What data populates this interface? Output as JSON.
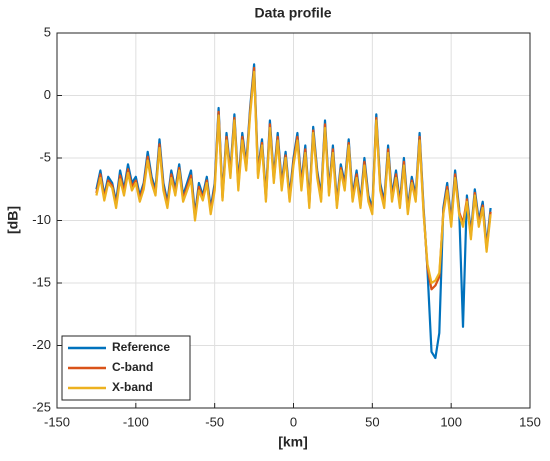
{
  "chart_data": {
    "type": "line",
    "title": "Data profile",
    "xlabel": "[km]",
    "ylabel": "[dB]",
    "x": [
      -125,
      -122.5,
      -120,
      -117.5,
      -115,
      -112.5,
      -110,
      -107.5,
      -105,
      -102.5,
      -100,
      -97.5,
      -95,
      -92.5,
      -90,
      -87.5,
      -85,
      -82.5,
      -80,
      -77.5,
      -75,
      -72.5,
      -70,
      -67.5,
      -65,
      -62.5,
      -60,
      -57.5,
      -55,
      -52.5,
      -50,
      -47.5,
      -45,
      -42.5,
      -40,
      -37.5,
      -35,
      -32.5,
      -30,
      -27.5,
      -25,
      -22.5,
      -20,
      -17.5,
      -15,
      -12.5,
      -10,
      -7.5,
      -5,
      -2.5,
      0,
      2.5,
      5,
      7.5,
      10,
      12.5,
      15,
      17.5,
      20,
      22.5,
      25,
      27.5,
      30,
      32.5,
      35,
      37.5,
      40,
      42.5,
      45,
      47.5,
      50,
      52.5,
      55,
      57.5,
      60,
      62.5,
      65,
      67.5,
      70,
      72.5,
      75,
      77.5,
      80,
      82.5,
      85,
      87.5,
      90,
      92.5,
      95,
      97.5,
      100,
      102.5,
      105,
      107.5,
      110,
      112.5,
      115,
      117.5,
      120,
      122.5,
      125
    ],
    "series": [
      {
        "name": "Reference",
        "color": "#0072bd",
        "values": [
          -7.5,
          -6,
          -8,
          -6.5,
          -7,
          -8.5,
          -6,
          -7.5,
          -5.5,
          -7,
          -6.5,
          -8,
          -7,
          -4.5,
          -6.5,
          -7.5,
          -3.5,
          -7,
          -8.5,
          -6,
          -7.5,
          -5.5,
          -8,
          -7,
          -6,
          -9.5,
          -7,
          -8,
          -6.5,
          -9,
          -7,
          -1,
          -8,
          -3,
          -6,
          -1.5,
          -7,
          -3,
          -5.5,
          -1,
          2.5,
          -6,
          -3.5,
          -8,
          -2,
          -6.5,
          -3,
          -7,
          -4.5,
          -8,
          -5,
          -3,
          -7,
          -4,
          -8.5,
          -2.5,
          -6,
          -8,
          -2,
          -7.5,
          -4,
          -8.5,
          -5.5,
          -7,
          -3.5,
          -8,
          -6,
          -8.5,
          -5,
          -8,
          -9,
          -1.5,
          -7,
          -8.5,
          -4,
          -8,
          -6,
          -8.5,
          -5,
          -9,
          -6.5,
          -8,
          -3,
          -9,
          -14,
          -20.5,
          -21,
          -19,
          -9,
          -7,
          -10,
          -6,
          -9,
          -18.5,
          -8,
          -11,
          -7.5,
          -10,
          -8.5,
          -12,
          -9
        ]
      },
      {
        "name": "C-band",
        "color": "#d95319",
        "values": [
          -7.8,
          -6.3,
          -8.2,
          -6.8,
          -7.2,
          -8.8,
          -6.4,
          -7.7,
          -5.9,
          -7.3,
          -6.8,
          -8.3,
          -7.2,
          -4.9,
          -6.8,
          -7.8,
          -3.9,
          -7.3,
          -8.8,
          -6.3,
          -7.8,
          -5.8,
          -8.3,
          -7.3,
          -6.4,
          -9.8,
          -7.3,
          -8.2,
          -6.8,
          -9.3,
          -7.3,
          -1.3,
          -8.2,
          -3.3,
          -6.3,
          -1.8,
          -7.3,
          -3.3,
          -5.8,
          -1.3,
          2.2,
          -6.3,
          -3.8,
          -8.3,
          -2.3,
          -6.8,
          -3.3,
          -7.3,
          -4.8,
          -8.3,
          -5.3,
          -3.3,
          -7.3,
          -4.3,
          -8.8,
          -2.8,
          -6.3,
          -8.3,
          -2.3,
          -7.8,
          -4.3,
          -8.8,
          -5.8,
          -7.3,
          -3.8,
          -8.3,
          -6.3,
          -8.8,
          -5.3,
          -8.3,
          -9.3,
          -1.8,
          -7.3,
          -8.8,
          -4.3,
          -8.3,
          -6.3,
          -8.8,
          -5.3,
          -9.3,
          -6.8,
          -8.3,
          -3.3,
          -9.3,
          -13.8,
          -15.5,
          -15.2,
          -14.5,
          -9.3,
          -7.3,
          -10.3,
          -6.3,
          -9.3,
          -10.2,
          -8.3,
          -11.3,
          -7.8,
          -10.3,
          -8.8,
          -12.3,
          -9.3
        ]
      },
      {
        "name": "X-band",
        "color": "#edb120",
        "values": [
          -8,
          -6.6,
          -8.4,
          -7,
          -7.4,
          -9,
          -6.7,
          -8,
          -6.2,
          -7.6,
          -7,
          -8.5,
          -7.5,
          -5.2,
          -7,
          -8,
          -4.2,
          -7.6,
          -9,
          -6.6,
          -8,
          -6,
          -8.5,
          -7.6,
          -6.7,
          -10,
          -7.6,
          -8.4,
          -7,
          -9.5,
          -7.6,
          -1.6,
          -8.4,
          -3.6,
          -6.6,
          -2,
          -7.6,
          -3.6,
          -6,
          -1.6,
          1.9,
          -6.6,
          -4,
          -8.5,
          -2.6,
          -7,
          -3.6,
          -7.6,
          -5,
          -8.5,
          -5.6,
          -3.6,
          -7.6,
          -4.6,
          -9,
          -3,
          -6.6,
          -8.5,
          -2.6,
          -8,
          -4.6,
          -9,
          -6,
          -7.6,
          -4,
          -8.5,
          -6.6,
          -9,
          -5.6,
          -8.5,
          -9.5,
          -2,
          -7.6,
          -9,
          -4.6,
          -8.5,
          -6.6,
          -9,
          -5.6,
          -9.5,
          -7,
          -8.5,
          -3.6,
          -9.5,
          -13.5,
          -15,
          -14.8,
          -14.2,
          -9.5,
          -7.6,
          -10.5,
          -6.6,
          -9.5,
          -10.5,
          -8.5,
          -11.5,
          -8,
          -10.5,
          -9,
          -12.5,
          -9.5
        ]
      }
    ],
    "xlim": [
      -150,
      150
    ],
    "xticks": [
      -150,
      -100,
      -50,
      0,
      50,
      100,
      150
    ],
    "ylim": [
      -25,
      5
    ],
    "yticks": [
      -25,
      -20,
      -15,
      -10,
      -5,
      0,
      5
    ],
    "grid": true,
    "legend": "lower left"
  }
}
